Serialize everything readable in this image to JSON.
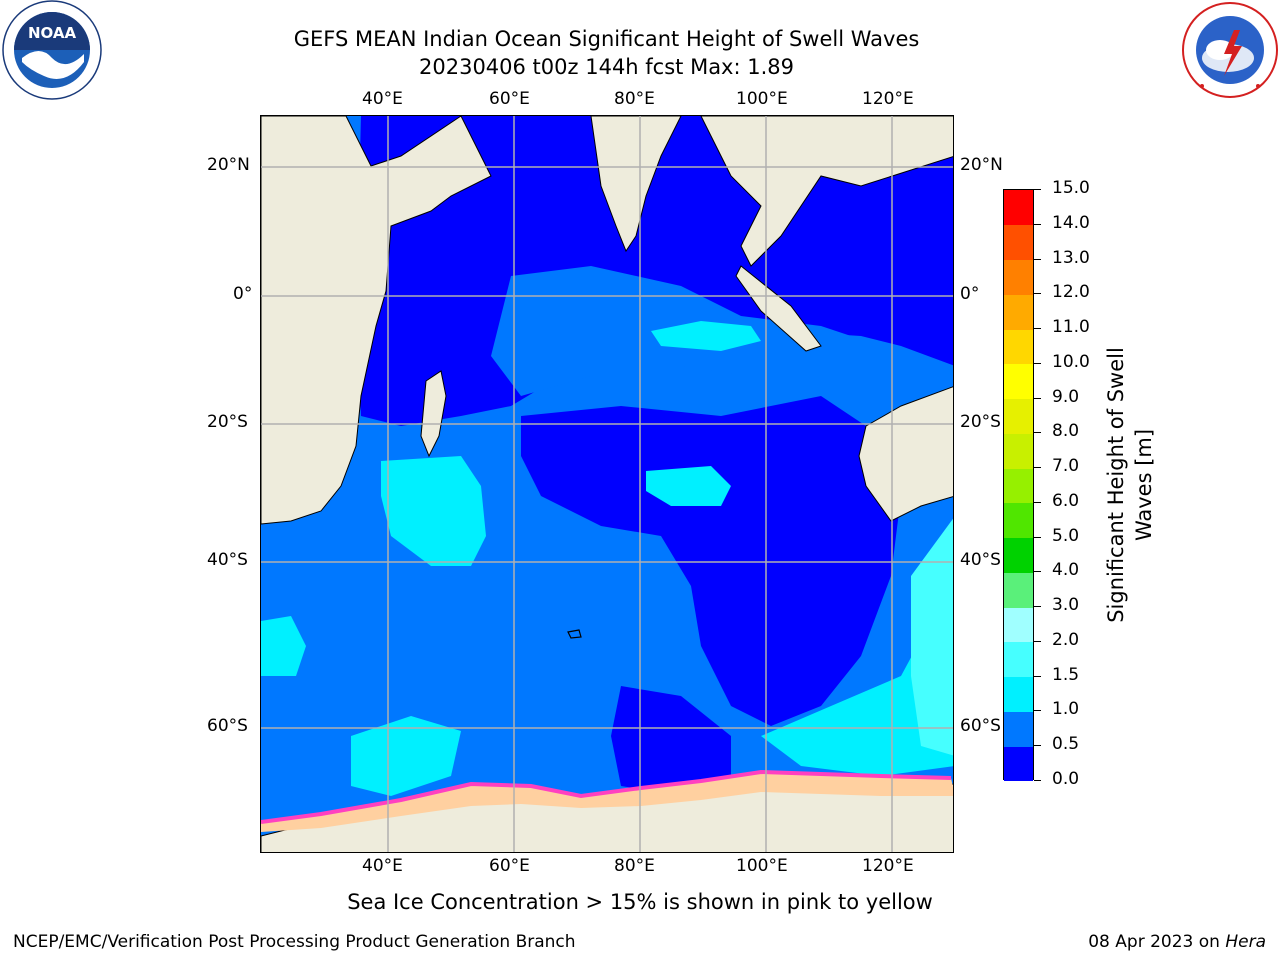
{
  "header": {
    "title_line1": "GEFS MEAN Indian Ocean Significant Height of Swell Waves",
    "title_line2": "20230406 t00z 144h fcst   Max: 1.89"
  },
  "logos": {
    "left": {
      "name": "noaa-logo",
      "text": "NOAA",
      "ring_text": "NATIONAL OCEANIC AND ATMOSPHERIC ADMINISTRATION · U.S. DEPARTMENT OF COMMERCE"
    },
    "right": {
      "name": "nws-logo",
      "ring_text": "NATIONAL WEATHER SERVICE"
    }
  },
  "map": {
    "lon_labels": [
      "40°E",
      "60°E",
      "80°E",
      "100°E",
      "120°E"
    ],
    "lat_labels_left": [
      "20°N",
      "0°",
      "20°S",
      "40°S",
      "60°S"
    ],
    "lat_labels_right": [
      "20°N",
      "0°",
      "20°S",
      "40°S",
      "60°S"
    ],
    "ocean_color": "#0078ff",
    "land_color": "#eeecdc",
    "grid": true
  },
  "colorbar": {
    "title_line1": "Significant Height of Swell",
    "title_line2": "Waves [m]",
    "ticks": [
      "0.0",
      "0.5",
      "1.0",
      "1.5",
      "2.0",
      "3.0",
      "4.0",
      "5.0",
      "6.0",
      "7.0",
      "8.0",
      "9.0",
      "10.0",
      "11.0",
      "12.0",
      "13.0",
      "14.0",
      "15.0"
    ],
    "colors": [
      "#0000ff",
      "#0078ff",
      "#00f0ff",
      "#46ffff",
      "#a0ffff",
      "#5af07a",
      "#00d200",
      "#50e600",
      "#96f000",
      "#c8f000",
      "#e6f000",
      "#ffff00",
      "#ffd700",
      "#ffaa00",
      "#ff8000",
      "#ff5000",
      "#ff0000"
    ]
  },
  "footer": {
    "ice_note": "Sea Ice Concentration > 15% is shown in pink to yellow",
    "credit_left": "NCEP/EMC/Verification Post Processing Product Generation Branch",
    "date_prefix": "08 Apr 2023 on ",
    "date_machine": "Hera"
  }
}
